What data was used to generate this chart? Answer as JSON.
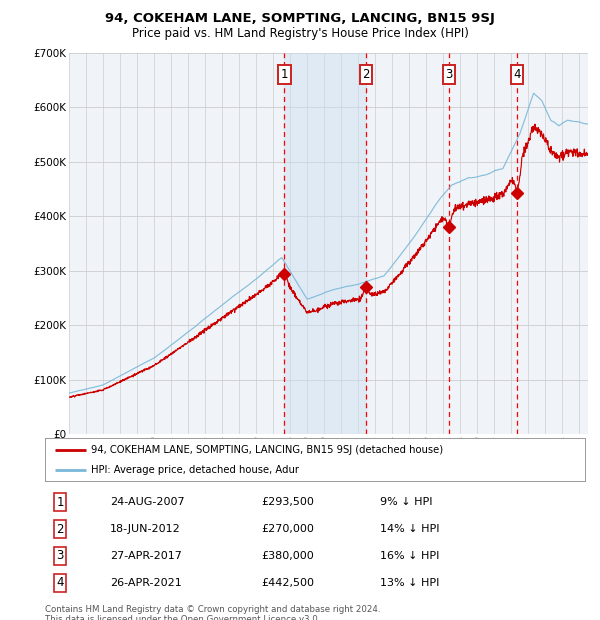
{
  "title": "94, COKEHAM LANE, SOMPTING, LANCING, BN15 9SJ",
  "subtitle": "Price paid vs. HM Land Registry's House Price Index (HPI)",
  "footer": "Contains HM Land Registry data © Crown copyright and database right 2024.\nThis data is licensed under the Open Government Licence v3.0.",
  "legend_line1": "94, COKEHAM LANE, SOMPTING, LANCING, BN15 9SJ (detached house)",
  "legend_line2": "HPI: Average price, detached house, Adur",
  "transactions": [
    {
      "num": 1,
      "date": "24-AUG-2007",
      "price": "£293,500",
      "rel": "9% ↓ HPI",
      "year": 2007.65,
      "value": 293500
    },
    {
      "num": 2,
      "date": "18-JUN-2012",
      "price": "£270,000",
      "rel": "14% ↓ HPI",
      "year": 2012.46,
      "value": 270000
    },
    {
      "num": 3,
      "date": "27-APR-2017",
      "price": "£380,000",
      "rel": "16% ↓ HPI",
      "year": 2017.32,
      "value": 380000
    },
    {
      "num": 4,
      "date": "26-APR-2021",
      "price": "£442,500",
      "rel": "13% ↓ HPI",
      "year": 2021.32,
      "value": 442500
    }
  ],
  "hpi_color": "#7ab8d9",
  "price_color": "#cc0000",
  "dashed_color": "#ff0000",
  "shade_color": "#cce0f0",
  "grid_color": "#cccccc",
  "bg_color": "#f0f4f8",
  "ylim": [
    0,
    700000
  ],
  "yticks": [
    0,
    100000,
    200000,
    300000,
    400000,
    500000,
    600000,
    700000
  ],
  "ytick_labels": [
    "£0",
    "£100K",
    "£200K",
    "£300K",
    "£400K",
    "£500K",
    "£600K",
    "£700K"
  ],
  "xlim_start": 1995.0,
  "xlim_end": 2025.5,
  "shade_start": 2007.65,
  "shade_end": 2012.46
}
